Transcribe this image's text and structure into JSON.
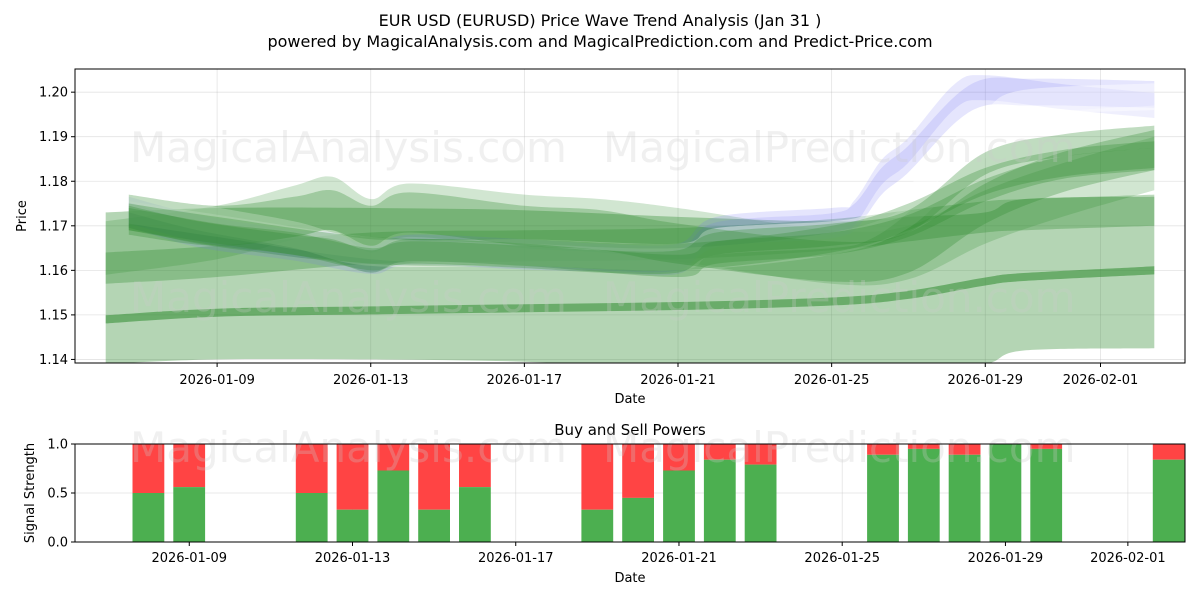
{
  "title_line1": "EUR USD (EURUSD) Price Wave Trend Analysis (Jan 31 )",
  "title_line2": "powered by MagicalAnalysis.com and MagicalPrediction.com and Predict-Price.com",
  "watermarks": [
    "MagicalAnalysis.com",
    "MagicalPrediction.com"
  ],
  "colors": {
    "green_band": "#2e8b2e",
    "blue_band": "#6f6ff5",
    "white_band": "#ffffff",
    "buy": "#4caf50",
    "sell": "#ff4444"
  },
  "chart_data": [
    {
      "type": "area",
      "title": "",
      "xlabel": "Date",
      "ylabel": "Price",
      "ylim": [
        1.1392,
        1.2052
      ],
      "yticks": [
        1.14,
        1.15,
        1.16,
        1.17,
        1.18,
        1.19,
        1.2
      ],
      "ytick_labels": [
        "1.14",
        "1.15",
        "1.16",
        "1.17",
        "1.18",
        "1.19",
        "1.20"
      ],
      "xlim_day": [
        -3.7,
        25.2
      ],
      "xticks": [
        {
          "day": 0,
          "label": "2026-01-09"
        },
        {
          "day": 4,
          "label": "2026-01-13"
        },
        {
          "day": 8,
          "label": "2026-01-17"
        },
        {
          "day": 12,
          "label": "2026-01-21"
        },
        {
          "day": 16,
          "label": "2026-01-25"
        },
        {
          "day": 20,
          "label": "2026-01-29"
        },
        {
          "day": 23,
          "label": "2026-02-01"
        }
      ],
      "grid": true,
      "series": [
        {
          "name": "blue-wave",
          "color": "blue",
          "alpha": 0.18,
          "half_width": 0.003,
          "x": [
            -2.3,
            -0.5,
            2,
            3,
            4,
            5,
            8,
            10,
            12,
            13,
            16,
            16.6,
            17.3,
            18,
            19.2,
            20,
            21,
            22,
            24.4
          ],
          "y": [
            1.1735,
            1.1695,
            1.166,
            1.1655,
            1.1625,
            1.165,
            1.164,
            1.163,
            1.163,
            1.169,
            1.171,
            1.172,
            1.18,
            1.185,
            1.196,
            1.2,
            1.2,
            1.2,
            1.1995
          ]
        },
        {
          "name": "blue-wave-2",
          "color": "blue",
          "alpha": 0.16,
          "half_width": 0.0028,
          "x": [
            -2.3,
            -0.5,
            2,
            4,
            5,
            8,
            10,
            12,
            13,
            16,
            16.6,
            17.3,
            18,
            19.2,
            20,
            22,
            24.4
          ],
          "y": [
            1.1725,
            1.168,
            1.165,
            1.162,
            1.164,
            1.163,
            1.1625,
            1.162,
            1.168,
            1.17,
            1.173,
            1.182,
            1.187,
            1.199,
            1.201,
            1.199,
            1.197
          ]
        },
        {
          "name": "white-wave",
          "color": "white",
          "alpha": 0.42,
          "half_width": 0.003,
          "x": [
            -2.3,
            -0.5,
            2,
            4,
            8,
            12,
            13,
            16,
            17,
            18,
            19,
            20,
            21,
            24.4
          ],
          "y": [
            1.176,
            1.172,
            1.168,
            1.164,
            1.164,
            1.163,
            1.1665,
            1.168,
            1.17,
            1.176,
            1.185,
            1.193,
            1.1975,
            1.199
          ]
        },
        {
          "name": "white-wave-2",
          "color": "white",
          "alpha": 0.32,
          "half_width": 0.0025,
          "x": [
            -2.3,
            0,
            4,
            8,
            12,
            16,
            18,
            19.5,
            21,
            24.4
          ],
          "y": [
            1.173,
            1.17,
            1.165,
            1.1635,
            1.1625,
            1.166,
            1.172,
            1.184,
            1.192,
            1.1945
          ]
        },
        {
          "name": "green-wave-1",
          "color": "green",
          "alpha": 0.3,
          "half_width": 0.0025,
          "x": [
            -2.3,
            -0.5,
            2,
            3,
            4,
            5,
            8,
            10,
            12,
            13,
            16,
            18,
            20,
            22,
            24.4
          ],
          "y": [
            1.172,
            1.1685,
            1.1655,
            1.1645,
            1.162,
            1.164,
            1.163,
            1.162,
            1.162,
            1.166,
            1.168,
            1.171,
            1.184,
            1.188,
            1.19
          ]
        },
        {
          "name": "green-wave-2",
          "color": "green",
          "alpha": 0.3,
          "half_width": 0.0025,
          "x": [
            -2.3,
            0,
            2,
            4,
            5,
            8,
            12,
            13,
            16,
            18,
            20,
            22,
            24.4
          ],
          "y": [
            1.1715,
            1.168,
            1.166,
            1.1625,
            1.1645,
            1.1635,
            1.161,
            1.164,
            1.166,
            1.17,
            1.178,
            1.183,
            1.185
          ]
        },
        {
          "name": "green-wave-3",
          "color": "green",
          "alpha": 0.3,
          "half_width": 0.003,
          "x": [
            -2.3,
            0,
            4,
            8,
            12,
            16,
            18,
            20,
            22,
            24.4
          ],
          "y": [
            1.172,
            1.169,
            1.1645,
            1.164,
            1.163,
            1.167,
            1.172,
            1.18,
            1.184,
            1.186
          ]
        },
        {
          "name": "green-trend-upper",
          "color": "green",
          "alpha": 0.32,
          "half_width": 0.0035,
          "x": [
            -2.9,
            0,
            4,
            8,
            12,
            16,
            18,
            20,
            21,
            24.4
          ],
          "y": [
            1.1605,
            1.162,
            1.165,
            1.1655,
            1.166,
            1.168,
            1.17,
            1.172,
            1.1725,
            1.1735
          ]
        },
        {
          "name": "green-trend-lower",
          "color": "green",
          "alpha": 0.55,
          "half_width": 0.0009,
          "x": [
            -2.9,
            0,
            4,
            8,
            12,
            16,
            18,
            20,
            21,
            24.4
          ],
          "y": [
            1.149,
            1.1505,
            1.151,
            1.1515,
            1.152,
            1.153,
            1.1545,
            1.1575,
            1.1585,
            1.16
          ]
        },
        {
          "name": "green-wide-band",
          "color": "green",
          "alpha": 0.36,
          "half_width": 0.017,
          "x": [
            -2.9,
            0,
            4,
            8,
            12,
            16,
            18,
            20,
            21,
            24.4
          ],
          "y": [
            1.156,
            1.157,
            1.157,
            1.1565,
            1.155,
            1.154,
            1.155,
            1.156,
            1.159,
            1.1595
          ]
        },
        {
          "name": "green-mid-band",
          "color": "green",
          "alpha": 0.3,
          "half_width": 0.0045,
          "x": [
            -2.3,
            0,
            2,
            3,
            4,
            5,
            8,
            10,
            12,
            16,
            18,
            20,
            22,
            24.4
          ],
          "y": [
            1.1725,
            1.17,
            1.172,
            1.1735,
            1.17,
            1.173,
            1.17,
            1.169,
            1.166,
            1.162,
            1.164,
            1.175,
            1.182,
            1.187
          ]
        },
        {
          "name": "green-upper-wave",
          "color": "green",
          "alpha": 0.22,
          "half_width": 0.006,
          "x": [
            -2.9,
            0,
            2,
            3,
            4,
            5,
            8,
            10,
            12,
            16,
            18,
            20,
            22,
            24.4
          ],
          "y": [
            1.165,
            1.1685,
            1.173,
            1.175,
            1.17,
            1.1735,
            1.171,
            1.17,
            1.168,
            1.163,
            1.164,
            1.172,
            1.178,
            1.184
          ]
        }
      ]
    },
    {
      "type": "bar",
      "title": "Buy and Sell Powers",
      "xlabel": "Date",
      "ylabel": "Signal Strength",
      "ylim": [
        0,
        1
      ],
      "yticks": [
        0,
        0.5,
        1
      ],
      "ytick_labels": [
        "0.0",
        "0.5",
        "1.0"
      ],
      "xlim_day": [
        -2.8,
        24.4
      ],
      "xticks": [
        {
          "day": 0,
          "label": "2026-01-09"
        },
        {
          "day": 4,
          "label": "2026-01-13"
        },
        {
          "day": 8,
          "label": "2026-01-17"
        },
        {
          "day": 12,
          "label": "2026-01-21"
        },
        {
          "day": 16,
          "label": "2026-01-25"
        },
        {
          "day": 20,
          "label": "2026-01-29"
        },
        {
          "day": 23,
          "label": "2026-02-01"
        }
      ],
      "grid": true,
      "series": [
        {
          "name": "Buy",
          "color": "buy"
        },
        {
          "name": "Sell",
          "color": "sell"
        }
      ],
      "bars": [
        {
          "day": -1,
          "buy": 0.5
        },
        {
          "day": 0,
          "buy": 0.56
        },
        {
          "day": 3,
          "buy": 0.5
        },
        {
          "day": 4,
          "buy": 0.33
        },
        {
          "day": 5,
          "buy": 0.73
        },
        {
          "day": 6,
          "buy": 0.33
        },
        {
          "day": 7,
          "buy": 0.56
        },
        {
          "day": 10,
          "buy": 0.33
        },
        {
          "day": 11,
          "buy": 0.45
        },
        {
          "day": 12,
          "buy": 0.73
        },
        {
          "day": 13,
          "buy": 0.84
        },
        {
          "day": 14,
          "buy": 0.79
        },
        {
          "day": 17,
          "buy": 0.89
        },
        {
          "day": 18,
          "buy": 0.95
        },
        {
          "day": 19,
          "buy": 0.89
        },
        {
          "day": 20,
          "buy": 1.0
        },
        {
          "day": 21,
          "buy": 0.95
        },
        {
          "day": 24,
          "buy": 0.84
        }
      ]
    }
  ]
}
